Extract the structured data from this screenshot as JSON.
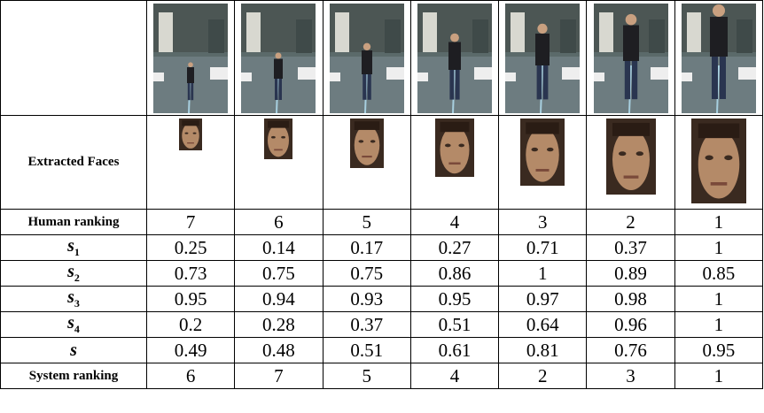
{
  "table": {
    "faces_label": "Extracted Faces",
    "rows": [
      {
        "label": "Human ranking",
        "values": [
          7,
          6,
          5,
          4,
          3,
          2,
          1
        ]
      },
      {
        "label": {
          "symbol": "s",
          "subscript": "1"
        },
        "values": [
          0.25,
          0.14,
          0.17,
          0.27,
          0.71,
          0.37,
          1
        ]
      },
      {
        "label": {
          "symbol": "s",
          "subscript": "2"
        },
        "values": [
          0.73,
          0.75,
          0.75,
          0.86,
          1,
          0.89,
          0.85
        ]
      },
      {
        "label": {
          "symbol": "s",
          "subscript": "3"
        },
        "values": [
          0.95,
          0.94,
          0.93,
          0.95,
          0.97,
          0.98,
          1
        ]
      },
      {
        "label": {
          "symbol": "s",
          "subscript": "4"
        },
        "values": [
          0.2,
          0.28,
          0.37,
          0.51,
          0.64,
          0.96,
          1
        ]
      },
      {
        "label": {
          "symbol": "s"
        },
        "values": [
          0.49,
          0.48,
          0.51,
          0.61,
          0.81,
          0.76,
          0.95
        ]
      },
      {
        "label": "System ranking",
        "values": [
          6,
          7,
          5,
          4,
          2,
          3,
          1
        ]
      }
    ]
  }
}
